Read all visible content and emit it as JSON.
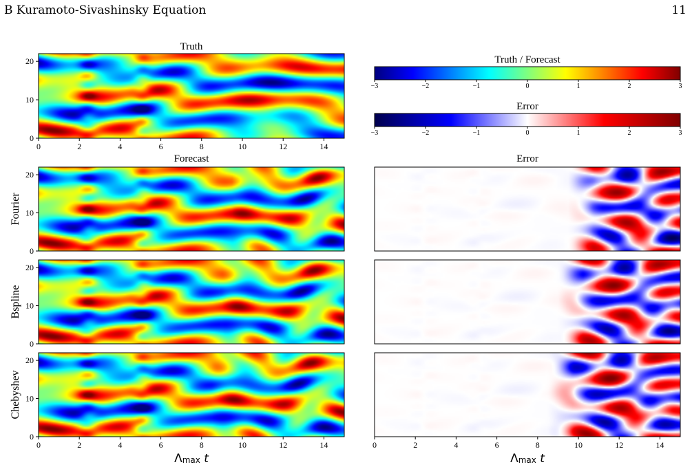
{
  "header": {
    "section": "B   Kuramoto-Sivashinsky Equation",
    "page_number": "11"
  },
  "chart_data": {
    "type": "heatmap",
    "xlabel_main": "Λ",
    "xlabel_sub": "max",
    "xlabel_var": "t",
    "x_ticks": [
      "0",
      "2",
      "4",
      "6",
      "8",
      "10",
      "12",
      "14"
    ],
    "y_ticks": [
      "0",
      "10",
      "20"
    ],
    "xlim": [
      0,
      15
    ],
    "ylim": [
      0,
      22
    ],
    "titles": {
      "truth": "Truth",
      "forecast": "Forecast",
      "error": "Error"
    },
    "row_labels": [
      "Fourier",
      "Bspline",
      "Chebyshev"
    ],
    "colorbars": [
      {
        "title": "Truth / Forecast",
        "colormap": "jet",
        "ticks": [
          "−3",
          "−2",
          "−1",
          "0",
          "1",
          "2",
          "3"
        ],
        "range": [
          -3,
          3
        ]
      },
      {
        "title": "Error",
        "colormap": "seismic",
        "ticks": [
          "−3",
          "−2",
          "−1",
          "0",
          "1",
          "2",
          "3"
        ],
        "range": [
          -3,
          3
        ]
      }
    ],
    "error_onset": [
      9.5,
      9.0,
      8.5
    ]
  }
}
